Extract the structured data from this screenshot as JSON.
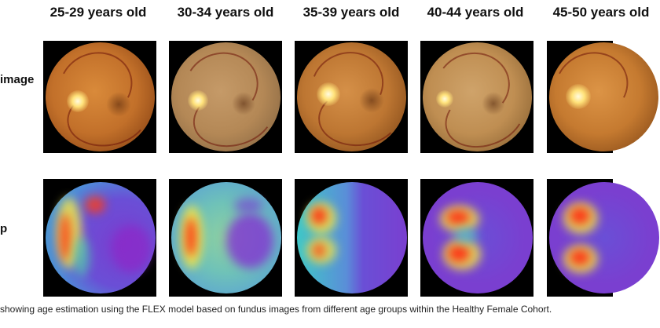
{
  "columns": [
    {
      "label": "25-29 years old"
    },
    {
      "label": "30-34 years old"
    },
    {
      "label": "35-39 years old"
    },
    {
      "label": "40-44 years old"
    },
    {
      "label": "45-50 years old"
    }
  ],
  "rows": {
    "fundus_label": "image",
    "heatmap_label": "p"
  },
  "caption": "showing age estimation using the FLEX model based on fundus images from different age groups within the Healthy Female Cohort.",
  "colors": {
    "fundus_orange": "#c8782e",
    "heat_purple": "#7a3fd0",
    "heat_red": "#ff2a10",
    "heat_yellow": "#f2e84a",
    "heat_cyan": "#3fc7d8"
  }
}
